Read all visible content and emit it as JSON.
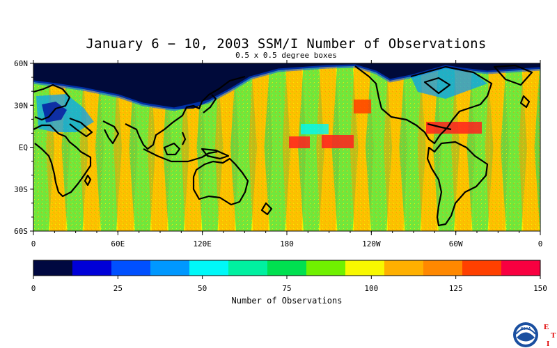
{
  "title": "January 6 − 10, 2003 SSM/I Number of Observations",
  "subtitle": "0.5 x 0.5 degree boxes",
  "map": {
    "lon_ticks": [
      "0",
      "60E",
      "120E",
      "180",
      "120W",
      "60W",
      "0"
    ],
    "lat_ticks": [
      "60N",
      "30N",
      "EQ",
      "30S",
      "60S"
    ]
  },
  "colorbar": {
    "label": "Number of Observations",
    "ticks": [
      "0",
      "25",
      "50",
      "75",
      "100",
      "125",
      "150"
    ],
    "colors": [
      "#000840",
      "#0000d8",
      "#0050ff",
      "#0098ff",
      "#00f8f8",
      "#00f0a0",
      "#00e050",
      "#70f000",
      "#f8f800",
      "#ffb000",
      "#ff8800",
      "#ff4000",
      "#f80040"
    ],
    "range": [
      0,
      150
    ]
  },
  "logo": {
    "text": "NOAA",
    "letters": [
      "E",
      "T",
      "I"
    ]
  }
}
